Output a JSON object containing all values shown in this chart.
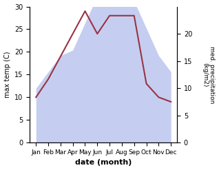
{
  "months": [
    "Jan",
    "Feb",
    "Mar",
    "Apr",
    "May",
    "Jun",
    "Jul",
    "Aug",
    "Sep",
    "Oct",
    "Nov",
    "Dec"
  ],
  "month_x": [
    0,
    1,
    2,
    3,
    4,
    5,
    6,
    7,
    8,
    9,
    10,
    11
  ],
  "temp_max": [
    10,
    14,
    19,
    24,
    29,
    24,
    28,
    28,
    28,
    13,
    10,
    9
  ],
  "precip": [
    10,
    13,
    16,
    17,
    22,
    27,
    29,
    29,
    26,
    21,
    16,
    13
  ],
  "temp_color": "#993344",
  "precip_fill_color": "#c5cef0",
  "xlabel": "date (month)",
  "ylabel_left": "max temp (C)",
  "ylabel_right": "med. precipitation\n(kg/m2)",
  "right_yticks": [
    0,
    5,
    10,
    15,
    20
  ],
  "left_yticks": [
    0,
    5,
    10,
    15,
    20,
    25,
    30
  ],
  "left_ylim": [
    0,
    30
  ],
  "right_ylim": [
    0,
    25
  ],
  "xlim": [
    -0.5,
    11.5
  ]
}
